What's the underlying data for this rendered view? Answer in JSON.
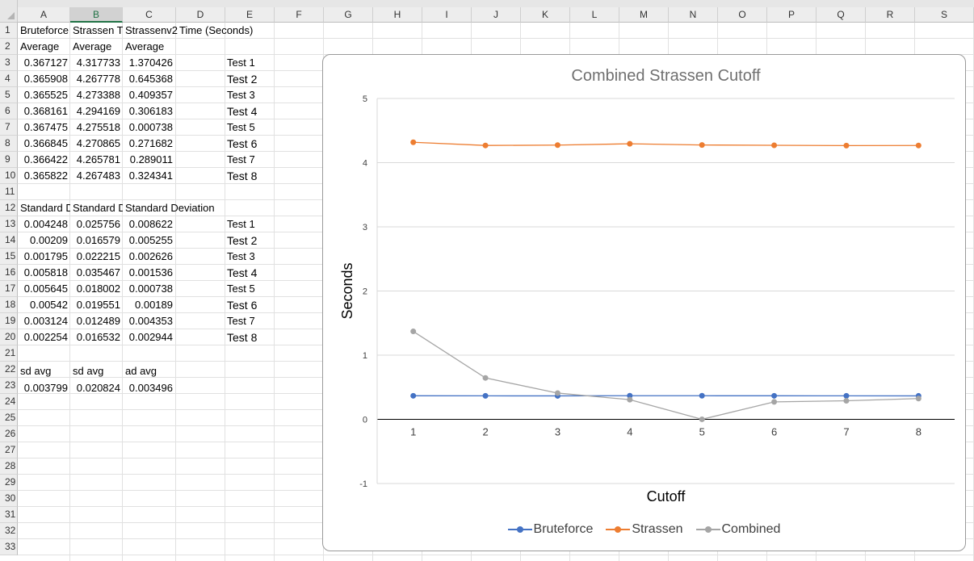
{
  "colors": {
    "bruteforce": "#4472c4",
    "strassen": "#ed7d31",
    "combined": "#a5a5a5",
    "selected_header": "#217346"
  },
  "column_headers": [
    "A",
    "B",
    "C",
    "D",
    "E",
    "F",
    "G",
    "H",
    "I",
    "J",
    "K",
    "L",
    "M",
    "N",
    "O",
    "P",
    "Q",
    "R",
    "S"
  ],
  "selected_column": "B",
  "row_headers": [
    "1",
    "2",
    "3",
    "4",
    "5",
    "6",
    "7",
    "8",
    "9",
    "10",
    "11",
    "12",
    "13",
    "14",
    "15",
    "16",
    "17",
    "18",
    "19",
    "20",
    "21",
    "22",
    "23",
    "24",
    "25",
    "26",
    "27",
    "28",
    "29",
    "30",
    "31",
    "32",
    "33"
  ],
  "cells": {
    "r1": {
      "a": "Bruteforce",
      "b": "Strassen T",
      "c": "Strassenv2",
      "d": "Time (Seconds)"
    },
    "r2": {
      "a": "Average",
      "b": "Average",
      "c": "Average"
    },
    "averages": [
      {
        "a": "0.367127",
        "b": "4.317733",
        "c": "1.370426",
        "e": "Test 1"
      },
      {
        "a": "0.365908",
        "b": "4.267778",
        "c": "0.645368",
        "e": "Test 2"
      },
      {
        "a": "0.365525",
        "b": "4.273388",
        "c": "0.409357",
        "e": "Test 3"
      },
      {
        "a": "0.368161",
        "b": "4.294169",
        "c": "0.306183",
        "e": "Test 4"
      },
      {
        "a": "0.367475",
        "b": "4.275518",
        "c": "0.000738",
        "e": "Test 5"
      },
      {
        "a": "0.366845",
        "b": "4.270865",
        "c": "0.271682",
        "e": "Test 6"
      },
      {
        "a": "0.366422",
        "b": "4.265781",
        "c": "0.289011",
        "e": "Test 7"
      },
      {
        "a": "0.365822",
        "b": "4.267483",
        "c": "0.324341",
        "e": "Test 8"
      }
    ],
    "r12": {
      "a": "Standard D",
      "b": "Standard D",
      "c": "Standard Deviation"
    },
    "stdevs": [
      {
        "a": "0.004248",
        "b": "0.025756",
        "c": "0.008622",
        "e": "Test 1"
      },
      {
        "a": "0.00209",
        "b": "0.016579",
        "c": "0.005255",
        "e": "Test 2"
      },
      {
        "a": "0.001795",
        "b": "0.022215",
        "c": "0.002626",
        "e": "Test 3"
      },
      {
        "a": "0.005818",
        "b": "0.035467",
        "c": "0.001536",
        "e": "Test 4"
      },
      {
        "a": "0.005645",
        "b": "0.018002",
        "c": "0.000738",
        "e": "Test 5"
      },
      {
        "a": "0.00542",
        "b": "0.019551",
        "c": "0.00189",
        "e": "Test 6"
      },
      {
        "a": "0.003124",
        "b": "0.012489",
        "c": "0.004353",
        "e": "Test 7"
      },
      {
        "a": "0.002254",
        "b": "0.016532",
        "c": "0.002944",
        "e": "Test 8"
      }
    ],
    "r22": {
      "a": "sd avg",
      "b": "sd avg",
      "c": "ad avg"
    },
    "r23": {
      "a": "0.003799",
      "b": "0.020824",
      "c": "0.003496"
    }
  },
  "chart_data": {
    "type": "line",
    "title": "Combined Strassen Cutoff",
    "xlabel": "Cutoff",
    "ylabel": "Seconds",
    "categories": [
      "1",
      "2",
      "3",
      "4",
      "5",
      "6",
      "7",
      "8"
    ],
    "ylim": [
      -1,
      5
    ],
    "yticks": [
      "-1",
      "0",
      "1",
      "2",
      "3",
      "4",
      "5"
    ],
    "grid": true,
    "legend_position": "bottom",
    "series": [
      {
        "name": "Bruteforce",
        "color": "#4472c4",
        "values": [
          0.367127,
          0.365908,
          0.365525,
          0.368161,
          0.367475,
          0.366845,
          0.366422,
          0.365822
        ]
      },
      {
        "name": "Strassen",
        "color": "#ed7d31",
        "values": [
          4.317733,
          4.267778,
          4.273388,
          4.294169,
          4.275518,
          4.270865,
          4.265781,
          4.267483
        ]
      },
      {
        "name": "Combined",
        "color": "#a5a5a5",
        "values": [
          1.370426,
          0.645368,
          0.409357,
          0.306183,
          0.000738,
          0.271682,
          0.289011,
          0.324341
        ]
      }
    ]
  }
}
